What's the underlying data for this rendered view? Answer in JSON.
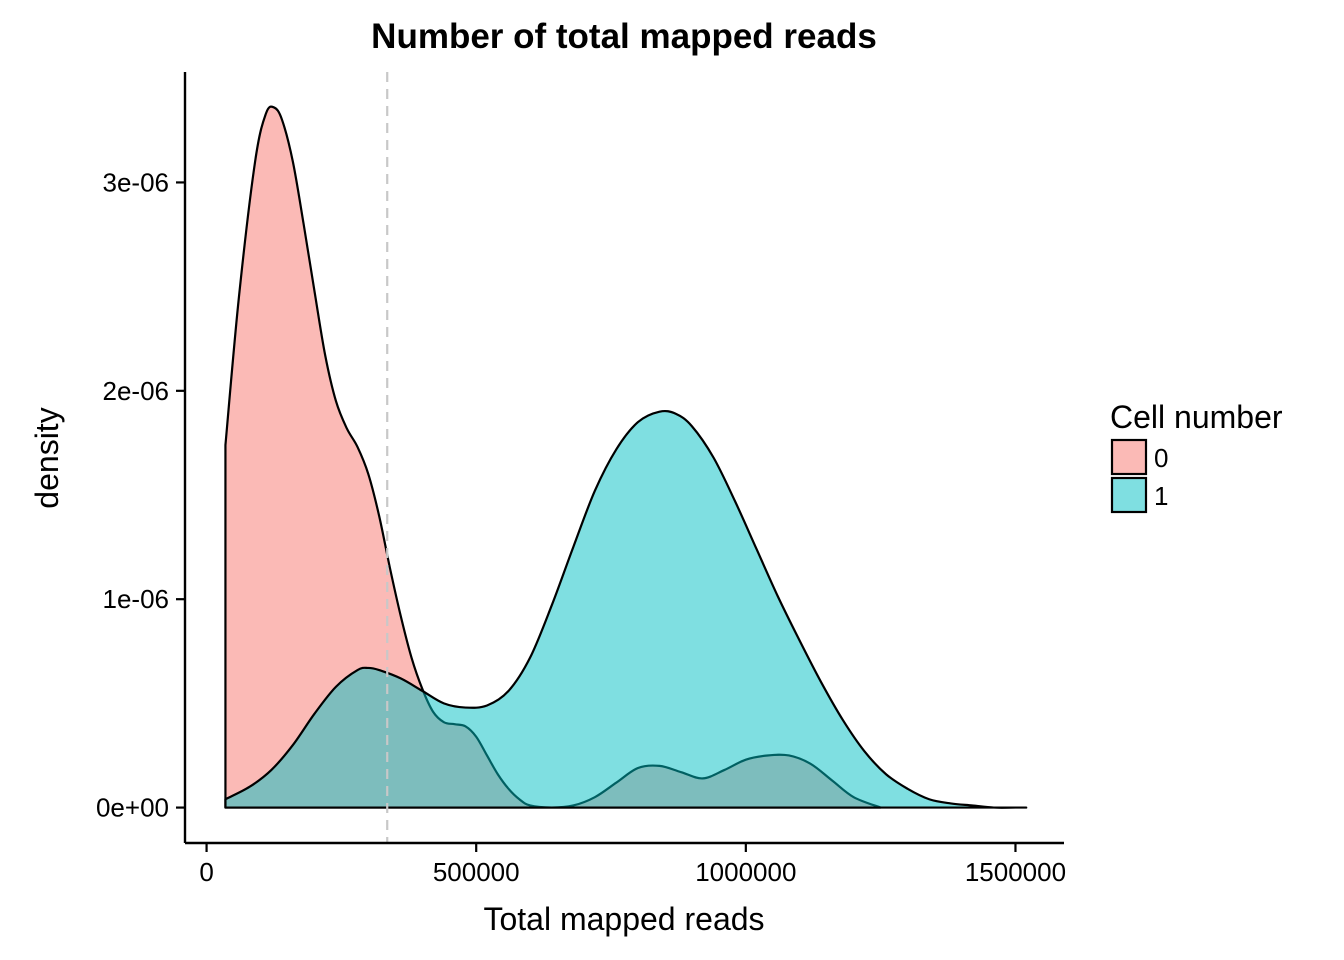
{
  "chart_data": {
    "type": "area",
    "title": "Number of total mapped reads",
    "xlabel": "Total mapped reads",
    "ylabel": "density",
    "xlim": [
      -40000,
      1590000
    ],
    "ylim": [
      -1.7e-07,
      3.53e-06
    ],
    "x_ticks": [
      0,
      500000,
      1000000,
      1500000
    ],
    "x_tick_labels": [
      "0",
      "500000",
      "1000000",
      "1500000"
    ],
    "y_ticks": [
      0,
      1e-06,
      2e-06,
      3e-06
    ],
    "y_tick_labels": [
      "0e+00",
      "1e-06",
      "2e-06",
      "3e-06"
    ],
    "vline": {
      "x": 335000,
      "style": "dashed",
      "color": "#c8c8c8"
    },
    "legend": {
      "title": "Cell number",
      "position": "right"
    },
    "grid": false,
    "series": [
      {
        "name": "0",
        "color": "#F8766D",
        "x": [
          35000,
          60000,
          90000,
          110000,
          125000,
          140000,
          160000,
          180000,
          200000,
          220000,
          240000,
          260000,
          280000,
          300000,
          320000,
          340000,
          360000,
          380000,
          400000,
          420000,
          440000,
          460000,
          480000,
          500000,
          520000,
          540000,
          560000,
          580000,
          600000,
          640000,
          680000,
          720000,
          760000,
          800000,
          840000,
          880000,
          920000,
          960000,
          1000000,
          1040000,
          1080000,
          1120000,
          1160000,
          1200000,
          1250000
        ],
        "y": [
          1.74e-06,
          2.45e-06,
          3.1e-06,
          3.33e-06,
          3.36e-06,
          3.3e-06,
          3.1e-06,
          2.8e-06,
          2.48e-06,
          2.17e-06,
          1.95e-06,
          1.82e-06,
          1.73e-06,
          1.6e-06,
          1.4e-06,
          1.15e-06,
          9.2e-07,
          7.2e-07,
          5.7e-07,
          4.6e-07,
          4.1e-07,
          4e-07,
          3.9e-07,
          3.4e-07,
          2.5e-07,
          1.6e-07,
          9e-08,
          4e-08,
          1e-08,
          0.0,
          1e-08,
          5e-08,
          1.2e-07,
          1.9e-07,
          2e-07,
          1.7e-07,
          1.4e-07,
          1.8e-07,
          2.3e-07,
          2.5e-07,
          2.5e-07,
          2.1e-07,
          1.3e-07,
          5e-08,
          0.0
        ]
      },
      {
        "name": "1",
        "color": "#00BFC4",
        "x": [
          35000,
          80000,
          120000,
          160000,
          200000,
          240000,
          280000,
          300000,
          320000,
          360000,
          400000,
          440000,
          480000,
          520000,
          560000,
          600000,
          640000,
          680000,
          720000,
          760000,
          800000,
          840000,
          870000,
          900000,
          940000,
          980000,
          1020000,
          1060000,
          1100000,
          1140000,
          1180000,
          1220000,
          1260000,
          1300000,
          1340000,
          1380000,
          1420000,
          1460000,
          1500000,
          1520000
        ],
        "y": [
          4e-08,
          1e-07,
          1.8e-07,
          3e-07,
          4.5e-07,
          5.8e-07,
          6.6e-07,
          6.7e-07,
          6.6e-07,
          6.2e-07,
          5.6e-07,
          5e-07,
          4.8e-07,
          4.9e-07,
          5.6e-07,
          7.2e-07,
          9.7e-07,
          1.25e-06,
          1.52e-06,
          1.72e-06,
          1.85e-06,
          1.9e-06,
          1.89e-06,
          1.83e-06,
          1.68e-06,
          1.47e-06,
          1.24e-06,
          1.01e-06,
          8e-07,
          6e-07,
          4.2e-07,
          2.7e-07,
          1.6e-07,
          9e-08,
          4e-08,
          2e-08,
          1e-08,
          0.0,
          0.0,
          0.0
        ]
      }
    ]
  }
}
